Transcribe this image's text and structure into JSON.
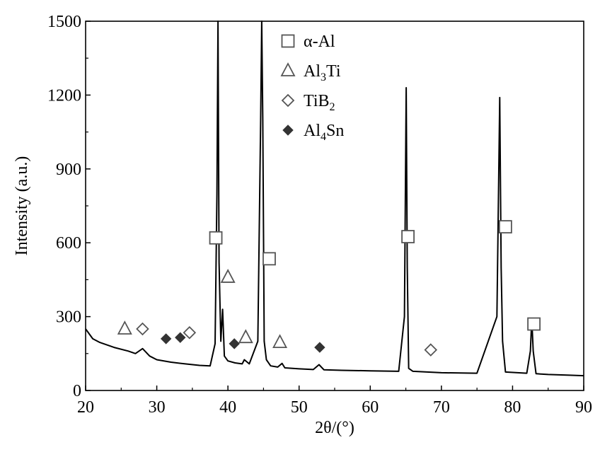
{
  "chart_data": {
    "type": "line",
    "title": "",
    "xlabel": "2θ/(°)",
    "ylabel": "Intensity (a.u.)",
    "xlim": [
      20,
      90
    ],
    "ylim": [
      0,
      1500
    ],
    "xticks": [
      20,
      30,
      40,
      50,
      60,
      70,
      80,
      90
    ],
    "yticks": [
      0,
      300,
      600,
      900,
      1200,
      1500
    ],
    "grid": false,
    "legend_position": "top-center",
    "line_color": "#000000",
    "legend": [
      {
        "symbol": "open-square",
        "label": "α-Al"
      },
      {
        "symbol": "open-triangle",
        "label": "Al3Ti"
      },
      {
        "symbol": "open-diamond",
        "label": "TiB2"
      },
      {
        "symbol": "filled-diamond",
        "label": "Al4Sn"
      }
    ],
    "series": [
      {
        "x": [
          20,
          21,
          22,
          24,
          26,
          27,
          28,
          29,
          30,
          32,
          34,
          36,
          37.5,
          38.2,
          38.45,
          38.6,
          38.75,
          39.0,
          39.25,
          39.5,
          40,
          41,
          42,
          42.3,
          43,
          44.2,
          44.6,
          44.75,
          44.9,
          45.1,
          45.4,
          46,
          47,
          47.6,
          48,
          50,
          52,
          52.8,
          53.5,
          56,
          60,
          64,
          64.8,
          65.05,
          65.2,
          65.4,
          66,
          68,
          70,
          75,
          77.8,
          78.2,
          78.4,
          78.6,
          79,
          82,
          82.5,
          82.7,
          82.9,
          83.3,
          85,
          88,
          90
        ],
        "y": [
          250,
          210,
          195,
          175,
          160,
          150,
          170,
          140,
          125,
          115,
          108,
          102,
          100,
          190,
          800,
          1500,
          520,
          200,
          330,
          140,
          120,
          112,
          108,
          125,
          108,
          200,
          1100,
          1500,
          1100,
          200,
          125,
          100,
          95,
          110,
          92,
          88,
          85,
          105,
          84,
          82,
          80,
          78,
          300,
          1230,
          500,
          90,
          78,
          75,
          72,
          70,
          300,
          1190,
          500,
          200,
          75,
          70,
          160,
          290,
          160,
          68,
          65,
          62,
          60
        ]
      }
    ],
    "annotations": [
      {
        "symbol": "open-triangle",
        "x": 25.5,
        "y": 250
      },
      {
        "symbol": "open-diamond",
        "x": 28.0,
        "y": 250
      },
      {
        "symbol": "filled-diamond",
        "x": 31.3,
        "y": 210
      },
      {
        "symbol": "filled-diamond",
        "x": 33.3,
        "y": 215
      },
      {
        "symbol": "open-diamond",
        "x": 34.6,
        "y": 235
      },
      {
        "symbol": "open-square",
        "x": 38.3,
        "y": 620
      },
      {
        "symbol": "open-triangle",
        "x": 40.0,
        "y": 460
      },
      {
        "symbol": "filled-diamond",
        "x": 40.9,
        "y": 190
      },
      {
        "symbol": "open-triangle",
        "x": 42.5,
        "y": 215
      },
      {
        "symbol": "open-square",
        "x": 45.8,
        "y": 535
      },
      {
        "symbol": "open-triangle",
        "x": 47.3,
        "y": 195
      },
      {
        "symbol": "filled-diamond",
        "x": 52.9,
        "y": 175
      },
      {
        "symbol": "open-square",
        "x": 65.3,
        "y": 625
      },
      {
        "symbol": "open-diamond",
        "x": 68.5,
        "y": 165
      },
      {
        "symbol": "open-square",
        "x": 79.0,
        "y": 665
      },
      {
        "symbol": "open-square",
        "x": 83.0,
        "y": 270
      }
    ]
  }
}
